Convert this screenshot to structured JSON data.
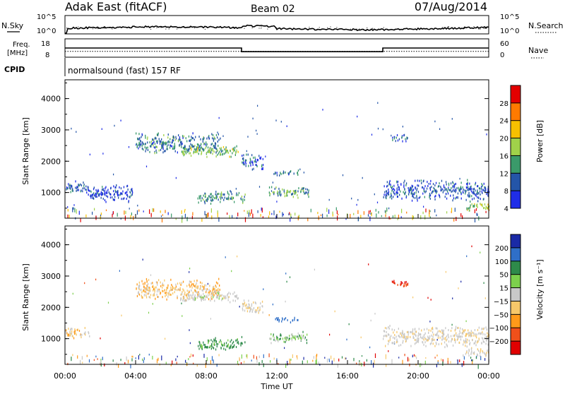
{
  "header": {
    "station": "Adak East (fitACF)",
    "beam": "Beam 02",
    "date": "07/Aug/2014"
  },
  "side_labels": {
    "nsky": "N.Sky",
    "nsearch": "N.Search",
    "freq": "Freq.",
    "freq_unit": "[MHz]",
    "nave": "Nave",
    "cpid": "CPID",
    "cpid_text": "normalsound (fast) 157 RF"
  },
  "chart_data": [
    {
      "type": "line",
      "panel": "noise",
      "left_ticks": [
        "10^5",
        "10^0"
      ],
      "right_ticks": [
        "10^5",
        "10^0"
      ],
      "series": [
        {
          "name": "N.Sky"
        },
        {
          "name": "N.Search"
        }
      ]
    },
    {
      "type": "line",
      "panel": "frequency",
      "left_ticks": [
        "18",
        "8"
      ],
      "right_ticks": [
        "60",
        "0"
      ],
      "freq_segments": [
        {
          "start_h": 0.0,
          "end_h": 10.0,
          "value_mhz": 13.0
        },
        {
          "start_h": 10.0,
          "end_h": 18.0,
          "value_mhz": 11.0
        },
        {
          "start_h": 18.0,
          "end_h": 24.0,
          "value_mhz": 13.0
        }
      ],
      "nave_level": 19
    },
    {
      "type": "heatmap",
      "panel": "power",
      "ylabel": "Slant Range [km]",
      "yticks": [
        "4000",
        "3000",
        "2000",
        "1000"
      ],
      "ylim": [
        180,
        4600
      ],
      "xlim": [
        0,
        24
      ],
      "colorbar": {
        "label": "Power [dB]",
        "ticks": [
          "28",
          "24",
          "20",
          "16",
          "12",
          "8",
          "4"
        ],
        "colors": [
          "#e30000",
          "#ff7a00",
          "#f7c000",
          "#a0d24a",
          "#3a9a6a",
          "#2455a8",
          "#1f2de8"
        ]
      },
      "echo_regions": [
        {
          "h0": 0.0,
          "h1": 1.4,
          "r0": 1000,
          "r1": 1400,
          "power": 8
        },
        {
          "h0": 1.2,
          "h1": 3.8,
          "r0": 700,
          "r1": 1300,
          "power": 6
        },
        {
          "h0": 4.0,
          "h1": 8.8,
          "r0": 2250,
          "r1": 2950,
          "power": 10
        },
        {
          "h0": 6.5,
          "h1": 9.8,
          "r0": 2150,
          "r1": 2550,
          "power": 14
        },
        {
          "h0": 7.5,
          "h1": 10.2,
          "r0": 650,
          "r1": 1100,
          "power": 11
        },
        {
          "h0": 10.0,
          "h1": 11.2,
          "r0": 1750,
          "r1": 2300,
          "power": 7
        },
        {
          "h0": 11.8,
          "h1": 13.2,
          "r0": 1550,
          "r1": 1750,
          "power": 9
        },
        {
          "h0": 11.5,
          "h1": 13.8,
          "r0": 850,
          "r1": 1250,
          "power": 12
        },
        {
          "h0": 18.0,
          "h1": 24.0,
          "r0": 750,
          "r1": 1450,
          "power": 7
        },
        {
          "h0": 18.5,
          "h1": 19.5,
          "r0": 2650,
          "r1": 2900,
          "power": 8
        },
        {
          "h0": 22.6,
          "h1": 24.0,
          "r0": 450,
          "r1": 750,
          "power": 16
        }
      ]
    },
    {
      "type": "heatmap",
      "panel": "velocity",
      "ylabel": "Slant Range [km]",
      "yticks": [
        "4000",
        "3000",
        "2000",
        "1000"
      ],
      "ylim": [
        180,
        4600
      ],
      "xlim": [
        0,
        24
      ],
      "xlabel": "Time UT",
      "xticks": [
        "00:00",
        "04:00",
        "08:00",
        "12:00",
        "16:00",
        "20:00",
        "00:00"
      ],
      "colorbar": {
        "label": "Velocity [m s⁻¹]",
        "ticks": [
          "200",
          "100",
          "50",
          "15",
          "−15",
          "−50",
          "−100",
          "−200"
        ],
        "colors": [
          "#1a2aa6",
          "#2f6fc8",
          "#2e8a4a",
          "#7cd04c",
          "#c8c8c8",
          "#f7c86a",
          "#ff9a1a",
          "#f0501a",
          "#e00000"
        ]
      },
      "echo_regions": [
        {
          "h0": 0.0,
          "h1": 1.4,
          "r0": 1000,
          "r1": 1400,
          "velocity": -20
        },
        {
          "h0": 4.0,
          "h1": 8.8,
          "r0": 2250,
          "r1": 2950,
          "velocity": -25
        },
        {
          "h0": 6.5,
          "h1": 9.8,
          "r0": 2150,
          "r1": 2550,
          "velocity": 0
        },
        {
          "h0": 7.5,
          "h1": 10.2,
          "r0": 650,
          "r1": 1100,
          "velocity": 40
        },
        {
          "h0": 10.0,
          "h1": 11.2,
          "r0": 1750,
          "r1": 2300,
          "velocity": -10
        },
        {
          "h0": 11.8,
          "h1": 13.2,
          "r0": 1550,
          "r1": 1750,
          "velocity": 120
        },
        {
          "h0": 11.5,
          "h1": 13.8,
          "r0": 850,
          "r1": 1250,
          "velocity": 20
        },
        {
          "h0": 18.0,
          "h1": 24.0,
          "r0": 750,
          "r1": 1450,
          "velocity": -5
        },
        {
          "h0": 18.5,
          "h1": 19.5,
          "r0": 2650,
          "r1": 2900,
          "velocity": -150
        },
        {
          "h0": 22.6,
          "h1": 24.0,
          "r0": 450,
          "r1": 750,
          "velocity": -10
        }
      ]
    }
  ]
}
